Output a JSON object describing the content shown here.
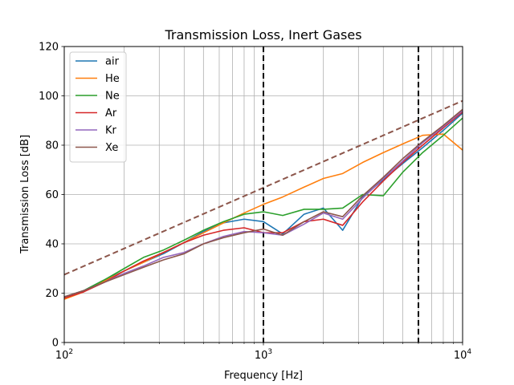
{
  "chart_data": {
    "type": "line",
    "title": "Transmission Loss, Inert Gases",
    "xlabel": "Frequency [Hz]",
    "ylabel": "Transmission Loss [dB]",
    "xscale": "log",
    "xlim": [
      100,
      10000
    ],
    "ylim": [
      0,
      120
    ],
    "grid": true,
    "legend_position": "top-left",
    "x_tick_labels": [
      {
        "base": "10",
        "exp": "2"
      },
      {
        "base": "10",
        "exp": "3"
      },
      {
        "base": "10",
        "exp": "4"
      }
    ],
    "y_tick_labels": [
      "0",
      "20",
      "40",
      "60",
      "80",
      "100",
      "120"
    ],
    "x": [
      100,
      125,
      160,
      200,
      250,
      315,
      400,
      500,
      630,
      800,
      1000,
      1250,
      1600,
      2000,
      2500,
      3150,
      4000,
      5000,
      6300,
      8000,
      10000
    ],
    "series": [
      {
        "name": "air",
        "color": "#1f77b4",
        "values": [
          18.5,
          21,
          25.5,
          29,
          32.5,
          36,
          40.5,
          45,
          48.5,
          50,
          49,
          44,
          52,
          54.5,
          45.5,
          59,
          66,
          72.5,
          79,
          86,
          93
        ]
      },
      {
        "name": "He",
        "color": "#ff7f0e",
        "values": [
          17.5,
          20.5,
          25,
          29,
          32.5,
          36.5,
          40.5,
          44.5,
          48.5,
          52.5,
          56,
          59,
          63,
          66.5,
          68.5,
          73,
          77,
          80.5,
          84,
          84.5,
          78
        ]
      },
      {
        "name": "Ne",
        "color": "#2ca02c",
        "values": [
          18.5,
          21,
          25.5,
          30,
          34.5,
          37.5,
          41.5,
          45.5,
          49,
          52,
          53,
          51.5,
          54,
          54,
          54.5,
          60,
          59.5,
          69,
          77,
          84,
          91
        ]
      },
      {
        "name": "Ar",
        "color": "#d62728",
        "values": [
          18,
          20.5,
          24.5,
          29,
          33,
          36.5,
          40.5,
          43.5,
          45.5,
          46.5,
          44.5,
          44.5,
          49,
          50,
          47.5,
          57,
          65.5,
          73,
          80,
          87,
          93.5
        ]
      },
      {
        "name": "Kr",
        "color": "#9467bd",
        "values": [
          18.5,
          21,
          24.5,
          28,
          31,
          34.5,
          36.5,
          40,
          43,
          45,
          44.5,
          43.5,
          48,
          52.5,
          50,
          58.5,
          66.5,
          73.5,
          81,
          87.5,
          94
        ]
      },
      {
        "name": "Xe",
        "color": "#8c564b",
        "values": [
          18.5,
          21,
          24.5,
          27.5,
          30.5,
          33.5,
          36,
          40,
          42.5,
          44.5,
          46,
          43.5,
          49,
          53,
          51,
          59.5,
          67,
          74.5,
          81.5,
          88,
          94.5
        ]
      }
    ],
    "reference_lines": [
      {
        "type": "dashed-line",
        "color": "#8c564b",
        "x": [
          100,
          10000
        ],
        "y": [
          27.5,
          98
        ]
      },
      {
        "type": "dashed-vertical",
        "color": "#000000",
        "x": 1000
      },
      {
        "type": "dashed-vertical",
        "color": "#000000",
        "x": 6000
      }
    ]
  }
}
